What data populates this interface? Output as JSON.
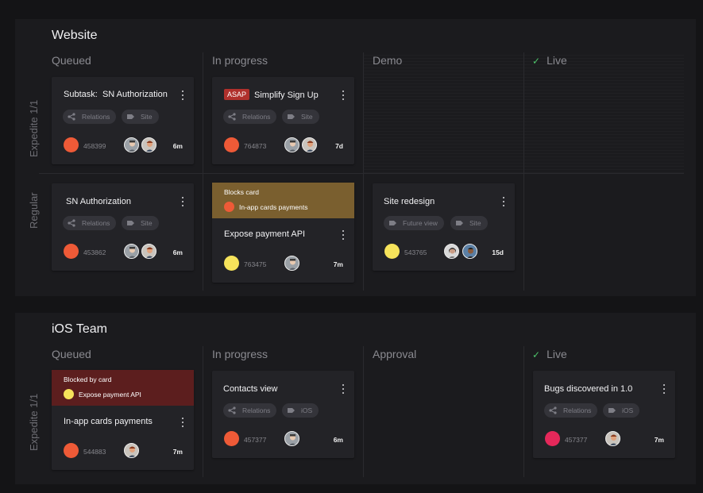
{
  "colors": {
    "orange": "#ee5a37",
    "yellow": "#f6e35b",
    "pink": "#e5285a",
    "gold_banner": "#7a5f2f",
    "red_banner": "#5c1e1e",
    "check": "#4ec46b"
  },
  "website": {
    "title": "Website",
    "columns": [
      "Queued",
      "In progress",
      "Demo",
      "Live"
    ],
    "lanes": [
      "Expedite 1/1",
      "Regular"
    ],
    "cards": [
      {
        "prefix": "Subtask:",
        "title": "SN Authorization",
        "tags": [
          "Relations",
          "Site"
        ],
        "id": "458399",
        "time": "6m"
      },
      {
        "badge": "ASAP",
        "title": "Simplify Sign Up",
        "tags": [
          "Relations",
          "Site"
        ],
        "id": "764873",
        "time": "7d"
      },
      {
        "title": "SN Authorization",
        "tags": [
          "Relations",
          "Site"
        ],
        "id": "453862",
        "time": "6m"
      },
      {
        "banner_title": "Blocks card",
        "banner_label": "In-app cards payments",
        "title": "Expose payment API",
        "id": "763475",
        "time": "7m"
      },
      {
        "title": "Site redesign",
        "tags": [
          "Future view",
          "Site"
        ],
        "id": "543765",
        "time": "15d"
      }
    ]
  },
  "ios": {
    "title": "iOS Team",
    "columns": [
      "Queued",
      "In progress",
      "Approval",
      "Live"
    ],
    "lanes": [
      "Expedite 1/1"
    ],
    "cards": [
      {
        "banner_title": "Blocked by card",
        "banner_label": "Expose payment API",
        "title": "In-app cards payments",
        "id": "544883",
        "time": "7m"
      },
      {
        "title": "Contacts view",
        "tags": [
          "Relations",
          "iOS"
        ],
        "id": "457377",
        "time": "6m"
      },
      {
        "title": "Bugs discovered in 1.0",
        "tags": [
          "Relations",
          "iOS"
        ],
        "id": "457377",
        "time": "7m"
      }
    ]
  }
}
